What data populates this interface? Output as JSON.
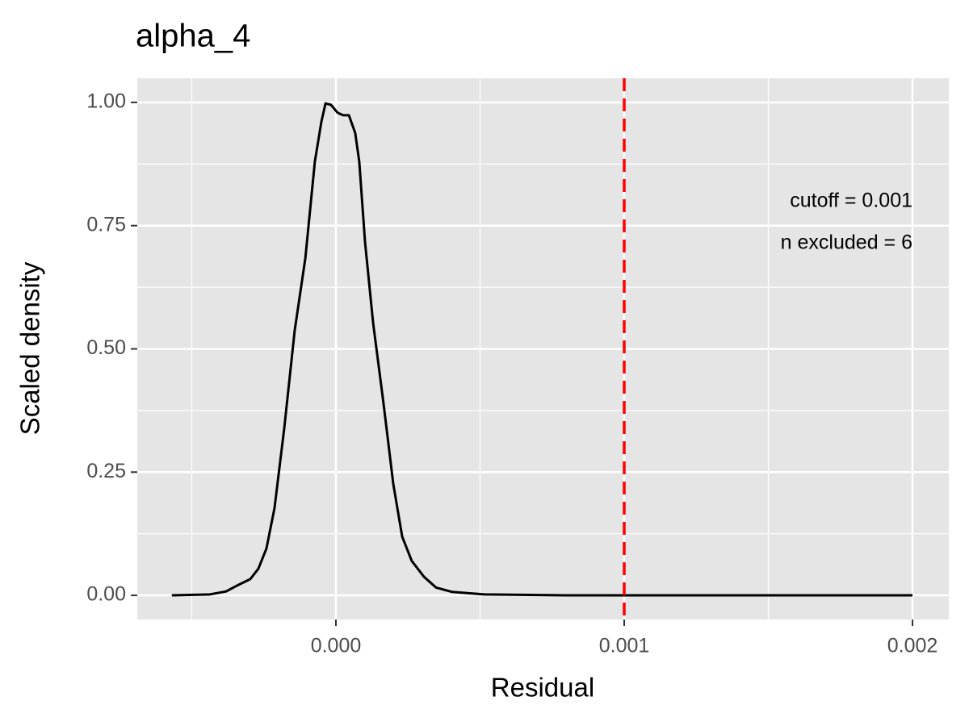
{
  "chart_data": {
    "type": "line",
    "title": "alpha_4",
    "xlabel": "Residual",
    "ylabel": "Scaled density",
    "series": [
      {
        "color": "#000000",
        "x": [
          -0.000569,
          -0.000437,
          -0.000381,
          -0.000339,
          -0.000297,
          -0.000269,
          -0.000241,
          -0.000213,
          -0.000179,
          -0.000143,
          -0.000106,
          -7.3e-05,
          -5e-05,
          -3.6e-05,
          -1.7e-05,
          6e-06,
          2.5e-05,
          4.5e-05,
          6.7e-05,
          8.1e-05,
          0.000101,
          0.000129,
          0.000165,
          0.000199,
          0.00023,
          0.000263,
          0.000305,
          0.000347,
          0.000403,
          0.000515,
          0.000796,
          0.002
        ],
        "values": [
          0,
          0.002,
          0.008,
          0.021,
          0.033,
          0.054,
          0.095,
          0.177,
          0.34,
          0.537,
          0.684,
          0.88,
          0.962,
          0.998,
          0.995,
          0.979,
          0.974,
          0.974,
          0.938,
          0.88,
          0.717,
          0.553,
          0.39,
          0.226,
          0.119,
          0.07,
          0.038,
          0.016,
          0.007,
          0.002,
          0,
          0
        ]
      }
    ],
    "vline": {
      "value": 0.001,
      "color": "#ff0000"
    },
    "annotations": [
      "cutoff = 0.001",
      "n excluded = 6"
    ],
    "xlim": [
      -0.000689,
      0.002126
    ],
    "ylim": [
      -0.049,
      1.049
    ],
    "xticks": [
      {
        "value": 0,
        "label": "0.000"
      },
      {
        "value": 0.001,
        "label": "0.001"
      },
      {
        "value": 0.002,
        "label": "0.002"
      }
    ],
    "yticks": [
      {
        "value": 0,
        "label": "0.00"
      },
      {
        "value": 0.25,
        "label": "0.25"
      },
      {
        "value": 0.5,
        "label": "0.50"
      },
      {
        "value": 0.75,
        "label": "0.75"
      },
      {
        "value": 1,
        "label": "1.00"
      }
    ],
    "x_minor_grid": [
      -0.0005,
      0.0005,
      0.0015
    ],
    "y_minor_grid": [
      0.125,
      0.375,
      0.625,
      0.875
    ],
    "grid": true
  }
}
